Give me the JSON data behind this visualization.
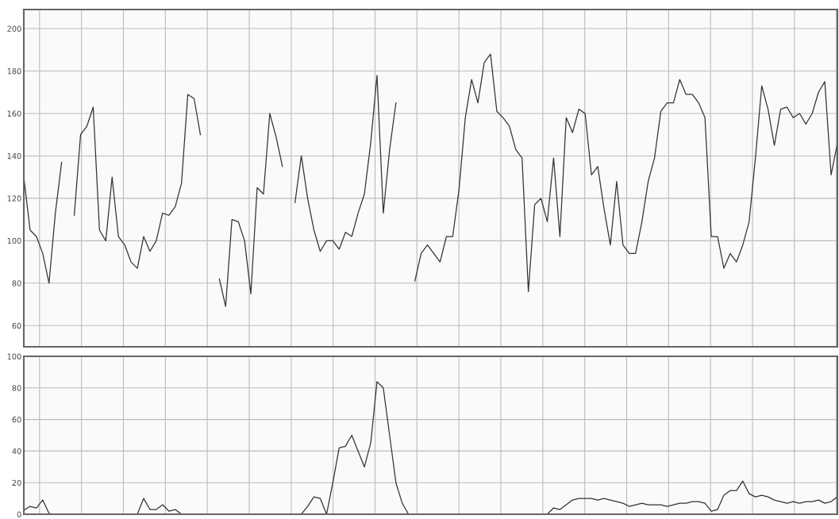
{
  "chart_data": [
    {
      "type": "line",
      "categories": [
        null,
        null,
        null,
        null,
        null,
        null,
        null,
        null,
        null,
        null,
        null,
        null,
        null,
        null,
        null,
        null,
        null,
        null,
        null,
        null,
        null,
        null,
        null,
        null,
        null,
        null,
        null,
        null,
        null,
        null,
        null,
        null,
        null,
        null,
        null,
        null,
        null,
        null,
        null,
        null,
        null,
        null,
        null,
        null,
        null,
        null,
        null,
        null,
        null,
        null,
        null,
        null,
        null,
        null,
        null,
        null,
        null,
        null,
        null,
        null,
        null,
        null,
        null,
        null,
        null,
        null,
        null,
        null,
        null,
        null,
        null,
        null,
        null,
        null,
        null,
        null,
        null,
        null,
        null,
        null,
        null,
        null,
        null,
        null,
        null,
        null,
        null,
        null,
        null,
        null,
        null,
        null,
        null,
        null,
        null,
        null,
        null,
        null,
        null,
        null,
        null,
        null,
        null,
        null,
        null,
        null,
        null,
        null,
        null,
        null,
        null,
        null,
        null,
        null,
        null,
        null,
        null,
        null,
        null,
        null,
        null,
        null,
        null,
        null,
        null,
        null,
        null,
        null,
        null,
        null
      ],
      "series": [
        {
          "color": "#333333",
          "values": [
            130,
            105,
            102,
            94,
            80,
            113,
            137,
            null,
            null,
            null,
            null,
            null,
            null,
            null,
            null,
            null,
            null,
            null,
            null,
            null,
            null,
            null,
            null,
            null,
            null,
            null,
            null,
            null,
            null,
            null,
            null,
            null,
            null,
            null,
            null,
            null,
            null,
            null,
            null,
            null,
            null,
            null,
            null,
            null,
            null,
            null,
            null,
            null,
            null,
            null,
            null,
            null,
            null,
            null,
            null,
            null,
            null,
            null,
            null,
            null,
            null,
            null,
            null,
            null,
            null,
            null,
            null,
            null,
            null,
            null,
            null,
            null,
            null,
            null,
            null,
            null,
            null,
            null,
            null,
            null,
            null,
            null,
            null,
            null,
            null,
            null,
            null,
            null,
            null,
            null,
            null,
            null,
            null,
            null,
            null,
            null,
            null,
            null,
            null,
            null,
            null,
            null,
            null,
            null,
            null,
            null,
            null,
            null,
            null,
            null,
            null,
            null,
            null,
            null,
            null,
            null,
            null,
            null,
            null,
            null,
            null,
            null,
            null,
            null,
            null,
            null,
            null,
            null,
            null,
            null
          ]
        },
        {
          "color": "#333333",
          "values": [
            null,
            null,
            null,
            null,
            null,
            null,
            null,
            null,
            112,
            150,
            154,
            163,
            105,
            100,
            130,
            102,
            98,
            90,
            87,
            102,
            95,
            100,
            113,
            112,
            116,
            127,
            169,
            167,
            150,
            null,
            null,
            null,
            null,
            null,
            null,
            null,
            null,
            null,
            null,
            null,
            null,
            null,
            null,
            null,
            null,
            null,
            null,
            null,
            null,
            null,
            null,
            null,
            null,
            null,
            null,
            null,
            null,
            null,
            null,
            null,
            null,
            null,
            null,
            null,
            null,
            null,
            null,
            null,
            null,
            null,
            null,
            null,
            null,
            null,
            null,
            null,
            null,
            null,
            null,
            null,
            null,
            null,
            null,
            null,
            null,
            null,
            null,
            null,
            null,
            null,
            null,
            null,
            null,
            null,
            null,
            null,
            null,
            null,
            null,
            null,
            null,
            null,
            null,
            null,
            null,
            null,
            null,
            null,
            null,
            null,
            null,
            null,
            null,
            null,
            null,
            null,
            null,
            null,
            null,
            null,
            null,
            null,
            null,
            null,
            null,
            null,
            null,
            null,
            null,
            null
          ]
        },
        {
          "color": "#333333",
          "values": [
            null,
            null,
            null,
            null,
            null,
            null,
            null,
            null,
            null,
            null,
            null,
            null,
            null,
            null,
            null,
            null,
            null,
            null,
            null,
            null,
            null,
            null,
            null,
            null,
            null,
            null,
            null,
            null,
            null,
            null,
            null,
            82,
            69,
            110,
            109,
            100,
            75,
            125,
            122,
            160,
            149,
            135,
            null,
            null,
            null,
            null,
            null,
            null,
            null,
            null,
            null,
            null,
            null,
            null,
            null,
            null,
            null,
            null,
            null,
            null,
            null,
            null,
            null,
            null,
            null,
            null,
            null,
            null,
            null,
            null,
            null,
            null,
            null,
            null,
            null,
            null,
            null,
            null,
            null,
            null,
            null,
            null,
            null,
            null,
            null,
            null,
            null,
            null,
            null,
            null,
            null,
            null,
            null,
            null,
            null,
            null,
            null,
            null,
            null,
            null,
            null,
            null,
            null,
            null,
            null,
            null,
            null,
            null,
            null,
            null,
            null,
            null,
            null,
            null,
            null,
            null,
            null,
            null,
            null,
            null,
            null,
            null,
            null,
            null,
            null,
            null,
            null,
            null,
            null,
            null
          ]
        },
        {
          "color": "#333333",
          "values": [
            null,
            null,
            null,
            null,
            null,
            null,
            null,
            null,
            null,
            null,
            null,
            null,
            null,
            null,
            null,
            null,
            null,
            null,
            null,
            null,
            null,
            null,
            null,
            null,
            null,
            null,
            null,
            null,
            null,
            null,
            null,
            null,
            null,
            null,
            null,
            null,
            null,
            null,
            null,
            null,
            null,
            null,
            null,
            118,
            140,
            120,
            105,
            95,
            100,
            100,
            96,
            104,
            102,
            113,
            122,
            146,
            178,
            113,
            143,
            165,
            null,
            null,
            null,
            null,
            null,
            null,
            null,
            null,
            null,
            null,
            null,
            null,
            null,
            null,
            null,
            null,
            null,
            null,
            null,
            null,
            null,
            null,
            null,
            null,
            null,
            null,
            null,
            null,
            null,
            null,
            null,
            null,
            null,
            null,
            null,
            null,
            null,
            null,
            null,
            null,
            null,
            null,
            null,
            null,
            null,
            null,
            null,
            null,
            null,
            null,
            null,
            null,
            null,
            null,
            null,
            null,
            null,
            null,
            null,
            null,
            null,
            null,
            null,
            null,
            null,
            null,
            null,
            null,
            null,
            null
          ]
        },
        {
          "color": "#333333",
          "values": [
            null,
            null,
            null,
            null,
            null,
            null,
            null,
            null,
            null,
            null,
            null,
            null,
            null,
            null,
            null,
            null,
            null,
            null,
            null,
            null,
            null,
            null,
            null,
            null,
            null,
            null,
            null,
            null,
            null,
            null,
            null,
            null,
            null,
            null,
            null,
            null,
            null,
            null,
            null,
            null,
            null,
            null,
            null,
            null,
            null,
            null,
            null,
            null,
            null,
            null,
            null,
            null,
            null,
            null,
            null,
            null,
            null,
            null,
            null,
            null,
            null,
            null,
            81,
            94,
            98,
            94,
            90,
            102,
            102,
            124,
            158,
            176,
            165,
            184,
            188,
            161,
            158,
            154,
            143,
            139,
            76,
            117,
            120,
            109,
            139,
            102,
            158,
            151,
            162,
            160,
            131,
            135,
            115,
            98,
            128,
            98,
            94,
            94,
            109,
            128,
            139,
            161,
            165,
            165,
            176,
            169,
            169,
            165,
            158,
            102,
            102,
            87,
            94,
            90,
            98,
            109,
            139,
            173,
            162,
            145,
            162,
            163,
            158,
            160,
            155,
            160,
            170,
            175,
            131,
            146
          ]
        }
      ],
      "ylim": [
        50,
        209
      ],
      "yticks": [
        60,
        80,
        100,
        120,
        140,
        160,
        180,
        200
      ],
      "grid": true
    },
    {
      "type": "line",
      "categories": [
        null,
        null,
        null,
        null,
        null,
        null,
        null,
        null,
        null,
        null,
        null,
        null,
        null,
        null,
        null,
        null,
        null,
        null,
        null,
        null,
        null,
        null,
        null,
        null,
        null,
        null,
        null,
        null,
        null,
        null,
        null,
        null,
        null,
        null,
        null,
        null,
        null,
        null,
        null,
        null,
        null,
        null,
        null,
        null,
        null,
        null,
        null,
        null,
        null,
        null,
        null,
        null,
        null,
        null,
        null,
        null,
        null,
        null,
        null,
        null,
        null,
        null,
        null,
        null,
        null,
        null,
        null,
        null,
        null,
        null,
        null,
        null,
        null,
        null,
        null,
        null,
        null,
        null,
        null,
        null,
        null,
        null,
        null,
        null,
        null,
        null,
        null,
        null,
        null,
        null,
        null,
        null,
        null,
        null,
        null,
        null,
        null,
        null,
        null,
        null,
        null,
        null,
        null,
        null,
        null,
        null,
        null,
        null,
        null,
        null,
        null,
        null,
        null,
        null,
        null,
        null,
        null,
        null,
        null,
        null,
        null,
        null,
        null,
        null,
        null,
        null,
        null,
        null,
        null,
        null
      ],
      "series": [
        {
          "color": "#333333",
          "values": [
            2.5,
            5,
            4,
            9,
            0.5,
            0,
            0,
            0,
            0,
            0,
            0,
            0,
            0,
            0,
            0,
            0,
            0,
            0,
            0,
            10,
            3,
            3,
            6,
            2,
            3,
            0,
            0,
            0,
            0,
            0,
            0,
            0,
            0,
            0,
            0,
            0,
            0,
            0,
            0,
            0,
            0,
            0,
            0,
            0,
            0,
            5,
            11,
            10,
            0,
            20,
            42,
            43,
            50,
            40,
            30,
            45,
            84,
            80,
            50,
            20,
            7,
            0,
            0,
            0,
            0,
            0,
            0,
            0,
            0,
            0,
            0,
            0,
            0,
            0,
            0,
            0,
            0,
            0,
            0,
            0,
            0,
            0,
            0,
            0,
            4,
            3,
            6,
            9,
            10,
            10,
            10,
            9,
            10,
            9,
            8,
            7,
            5,
            6,
            7,
            6,
            6,
            6,
            5,
            6,
            7,
            7,
            8,
            8,
            7,
            2,
            3,
            12,
            15,
            15,
            21,
            13,
            11,
            12,
            11,
            9,
            8,
            7,
            8,
            7,
            8,
            8,
            9,
            7,
            8,
            11
          ]
        }
      ],
      "ylim": [
        0,
        100
      ],
      "yticks": [
        0,
        20,
        40,
        60,
        80,
        100
      ],
      "grid": true
    }
  ]
}
